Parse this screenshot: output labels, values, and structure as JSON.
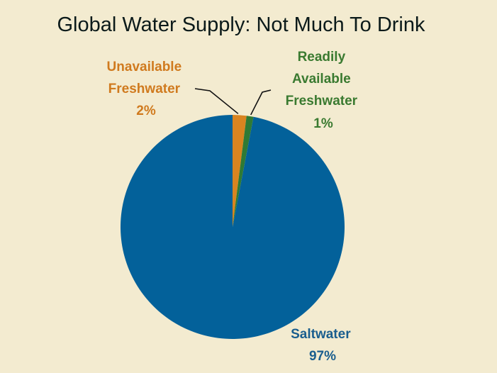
{
  "chart_data": {
    "type": "pie",
    "title": "Global Water Supply: Not Much To Drink",
    "slices": [
      {
        "label_lines": [
          "Unavailable",
          "Freshwater"
        ],
        "value_text": "2%",
        "value": 2,
        "color": "#d98420",
        "label_color": "#d07a1e"
      },
      {
        "label_lines": [
          "Readily",
          "Available",
          "Freshwater"
        ],
        "value_text": "1%",
        "value": 1,
        "color": "#2f7a35",
        "label_color": "#3a7a30"
      },
      {
        "label_lines": [
          "Saltwater"
        ],
        "value_text": "97%",
        "value": 97,
        "color": "#03619a",
        "label_color": "#1a5e8e"
      }
    ],
    "background_color": "#f3ebd0",
    "legend": "none"
  }
}
